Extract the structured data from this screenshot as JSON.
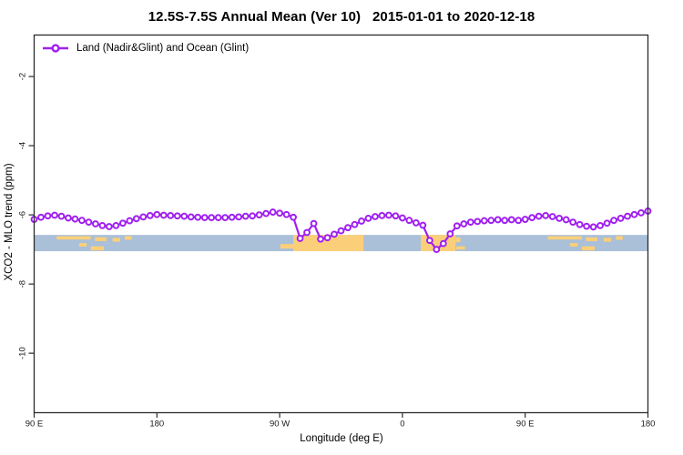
{
  "colors": {
    "series": "#A020F0",
    "marker_fill": "#ffffff",
    "ocean_band": "#AABFD8",
    "land_patch": "#FBCF7A",
    "frame": "#2b2b2b",
    "tick_text": "#1a1a1a"
  },
  "legend": {
    "label": "Land (Nadir&Glint) and Ocean (Glint)"
  },
  "chart_data": {
    "type": "line",
    "title": "12.5S-7.5S Annual Mean (Ver 10)   2015-01-01 to 2020-12-18",
    "xlabel": "Longitude (deg E)",
    "ylabel": "XCO2 - MLO trend (ppm)",
    "xlim": [
      90,
      540
    ],
    "ylim": [
      -11.72,
      -0.8
    ],
    "grid": false,
    "legend_position": "top-left",
    "x_ticks": [
      {
        "v": 90,
        "label": "90 E"
      },
      {
        "v": 180,
        "label": "180"
      },
      {
        "v": 270,
        "label": "90 W"
      },
      {
        "v": 360,
        "label": "0"
      },
      {
        "v": 450,
        "label": "90 E"
      },
      {
        "v": 540,
        "label": "180"
      }
    ],
    "y_ticks": [
      -2,
      -4,
      -6,
      -8,
      -10
    ],
    "ocean_band": {
      "y_top_value": -6.58,
      "y_bottom_value": -7.05
    },
    "land_patches": [
      {
        "lon0": 270.5,
        "lon1": 280,
        "f0": 0.56,
        "f1": 0.84
      },
      {
        "lon0": 280,
        "lon1": 331.5,
        "f0": 0.0,
        "f1": 1.0
      },
      {
        "lon0": 373.5,
        "lon1": 399,
        "f0": 0.0,
        "f1": 1.0
      },
      {
        "lon0": 399,
        "lon1": 402.5,
        "f0": 0.15,
        "f1": 0.45
      },
      {
        "lon0": 399.5,
        "lon1": 406,
        "f0": 0.7,
        "f1": 0.9
      },
      {
        "lon0": 106.5,
        "lon1": 131.5,
        "f0": 0.08,
        "f1": 0.28
      },
      {
        "lon0": 123,
        "lon1": 128.5,
        "f0": 0.5,
        "f1": 0.72
      },
      {
        "lon0": 131.5,
        "lon1": 141,
        "f0": 0.7,
        "f1": 0.95
      },
      {
        "lon0": 134.5,
        "lon1": 143,
        "f0": 0.15,
        "f1": 0.38
      },
      {
        "lon0": 147.5,
        "lon1": 153,
        "f0": 0.18,
        "f1": 0.42
      },
      {
        "lon0": 156.5,
        "lon1": 161.5,
        "f0": 0.07,
        "f1": 0.3
      },
      {
        "lon0": 466.5,
        "lon1": 491.5,
        "f0": 0.08,
        "f1": 0.28
      },
      {
        "lon0": 483,
        "lon1": 488.5,
        "f0": 0.5,
        "f1": 0.72
      },
      {
        "lon0": 491.5,
        "lon1": 501,
        "f0": 0.7,
        "f1": 0.95
      },
      {
        "lon0": 494.5,
        "lon1": 503,
        "f0": 0.15,
        "f1": 0.38
      },
      {
        "lon0": 507.5,
        "lon1": 513,
        "f0": 0.18,
        "f1": 0.42
      },
      {
        "lon0": 516.5,
        "lon1": 521.5,
        "f0": 0.07,
        "f1": 0.3
      }
    ],
    "series": [
      {
        "name": "Land (Nadir&Glint) and Ocean (Glint)",
        "marker": "open-circle",
        "x": [
          90,
          95,
          100,
          105,
          110,
          115,
          120,
          125,
          130,
          135,
          140,
          145,
          150,
          155,
          160,
          165,
          170,
          175,
          180,
          185,
          190,
          195,
          200,
          205,
          210,
          215,
          220,
          225,
          230,
          235,
          240,
          245,
          250,
          255,
          260,
          265,
          270,
          275,
          280,
          285,
          290,
          295,
          300,
          305,
          310,
          315,
          320,
          325,
          330,
          335,
          340,
          345,
          350,
          355,
          360,
          365,
          370,
          375,
          380,
          385,
          390,
          395,
          400,
          405,
          410,
          415,
          420,
          425,
          430,
          435,
          440,
          445,
          450,
          455,
          460,
          465,
          470,
          475,
          480,
          485,
          490,
          495,
          500,
          505,
          510,
          515,
          520,
          525,
          530,
          535,
          540
        ],
        "y": [
          -6.13,
          -6.07,
          -6.03,
          -6.01,
          -6.04,
          -6.09,
          -6.12,
          -6.16,
          -6.21,
          -6.26,
          -6.31,
          -6.34,
          -6.31,
          -6.24,
          -6.17,
          -6.11,
          -6.06,
          -6.02,
          -5.99,
          -6.01,
          -6.02,
          -6.03,
          -6.04,
          -6.06,
          -6.07,
          -6.08,
          -6.08,
          -6.08,
          -6.08,
          -6.07,
          -6.06,
          -6.04,
          -6.03,
          -6.0,
          -5.96,
          -5.92,
          -5.95,
          -5.99,
          -6.07,
          -6.68,
          -6.51,
          -6.25,
          -6.7,
          -6.66,
          -6.56,
          -6.46,
          -6.37,
          -6.28,
          -6.18,
          -6.1,
          -6.05,
          -6.02,
          -6.01,
          -6.03,
          -6.09,
          -6.16,
          -6.23,
          -6.3,
          -6.74,
          -7.0,
          -6.83,
          -6.55,
          -6.32,
          -6.26,
          -6.21,
          -6.19,
          -6.17,
          -6.16,
          -6.14,
          -6.16,
          -6.14,
          -6.16,
          -6.13,
          -6.08,
          -6.04,
          -6.02,
          -6.05,
          -6.1,
          -6.14,
          -6.21,
          -6.28,
          -6.33,
          -6.35,
          -6.31,
          -6.24,
          -6.16,
          -6.1,
          -6.04,
          -5.99,
          -5.94,
          -5.89
        ]
      }
    ]
  }
}
